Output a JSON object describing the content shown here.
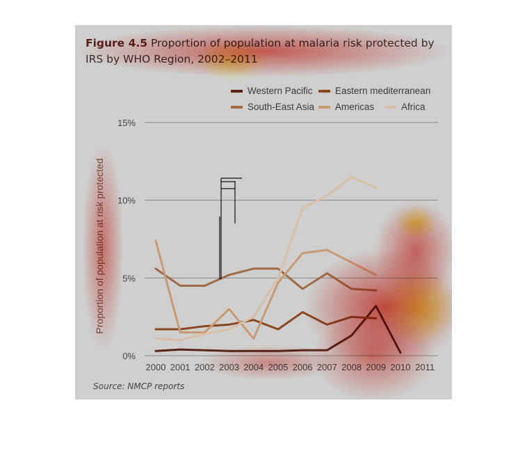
{
  "figure": {
    "label": "Figure 4.5",
    "title_part1": "Proportion of population at malaria risk protected by",
    "title_part2": "IRS by WHO Region, 2002–2011",
    "source_label": "Source:",
    "source_text": "NMCP reports"
  },
  "colors": {
    "panel_bg": "#cfcfcf",
    "western_pacific": "#5a2316",
    "eastern_mediterranean": "#8a4620",
    "south_east_asia": "#a06a45",
    "americas": "#c79a74",
    "africa": "#d9bfa6",
    "heatmap_red": "#e83c30",
    "heatmap_yellow": "#fff23a"
  },
  "chart_data": {
    "type": "line",
    "title": "Proportion of population at malaria risk protected by IRS by WHO Region, 2002–2011",
    "ylabel": "Proportion of population at risk protected",
    "xlabel": "",
    "x": [
      "2000",
      "2001",
      "2002",
      "2003",
      "2004",
      "2005",
      "2006",
      "2007",
      "2008",
      "2009",
      "2010",
      "2011"
    ],
    "y_ticks": [
      "0%",
      "5%",
      "10%",
      "15%"
    ],
    "ylim": [
      0,
      15
    ],
    "grid": true,
    "legend_position": "top-right",
    "series": [
      {
        "name": "Western Pacific",
        "color_key": "western_pacific",
        "values": [
          0.3,
          0.4,
          0.35,
          0.3,
          0.3,
          0.3,
          0.35,
          0.35,
          1.3,
          3.2,
          0.2,
          null
        ]
      },
      {
        "name": "Eastern mediterranean",
        "color_key": "eastern_mediterranean",
        "values": [
          1.7,
          1.7,
          1.9,
          2.0,
          2.3,
          1.7,
          2.8,
          2.0,
          2.5,
          2.4,
          null,
          null
        ]
      },
      {
        "name": "South-East Asia",
        "color_key": "south_east_asia",
        "values": [
          5.6,
          4.5,
          4.5,
          5.2,
          5.6,
          5.6,
          4.3,
          5.3,
          4.3,
          4.2,
          null,
          null
        ]
      },
      {
        "name": "Americas",
        "color_key": "americas",
        "values": [
          7.4,
          1.5,
          1.5,
          3.0,
          1.1,
          4.7,
          6.6,
          6.8,
          6.0,
          5.2,
          null,
          null
        ]
      },
      {
        "name": "Africa",
        "color_key": "africa",
        "values": [
          1.1,
          1.0,
          1.4,
          1.7,
          2.5,
          5.0,
          9.5,
          10.3,
          11.5,
          10.8,
          null,
          null
        ]
      }
    ]
  }
}
